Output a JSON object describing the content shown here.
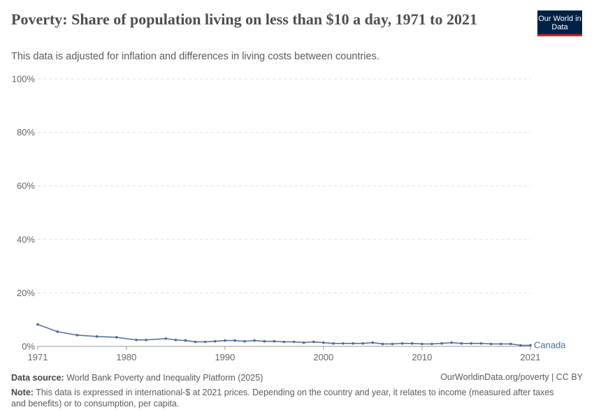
{
  "title": "Poverty: Share of population living on less than $10 a day, 1971 to 2021",
  "subtitle": "This data is adjusted for inflation and differences in living costs between countries.",
  "logo": "Our World in Data",
  "footer": {
    "source_label": "Data source:",
    "source": "World Bank Poverty and Inequality Platform (2025)",
    "credit": "OurWorldinData.org/poverty | CC BY",
    "note_label": "Note:",
    "note": "This data is expressed in international-$ at 2021 prices. Depending on the country and year, it relates to income (measured after taxes and benefits) or to consumption, per capita."
  },
  "chart_data": {
    "type": "line",
    "title": "Poverty: Share of population living on less than $10 a day, 1971 to 2021",
    "xlim": [
      1971,
      2021
    ],
    "ylim": [
      0,
      100
    ],
    "x_ticks": [
      "1971",
      "1980",
      "1990",
      "2000",
      "2010",
      "2021"
    ],
    "y_ticks": [
      "0%",
      "20%",
      "40%",
      "60%",
      "80%",
      "100%"
    ],
    "grid": "horizontal dashed",
    "series": [
      {
        "name": "Canada",
        "color": "#4c6a9c",
        "x": [
          1971,
          1973,
          1975,
          1977,
          1979,
          1981,
          1982,
          1984,
          1985,
          1986,
          1987,
          1988,
          1989,
          1990,
          1991,
          1992,
          1993,
          1994,
          1995,
          1996,
          1997,
          1998,
          1999,
          2000,
          2001,
          2002,
          2003,
          2004,
          2005,
          2006,
          2007,
          2008,
          2009,
          2010,
          2011,
          2012,
          2013,
          2014,
          2015,
          2016,
          2017,
          2018,
          2019,
          2020,
          2021
        ],
        "y": [
          8.2,
          5.5,
          4.2,
          3.7,
          3.4,
          2.4,
          2.4,
          2.9,
          2.4,
          2.2,
          1.7,
          1.7,
          1.9,
          2.2,
          2.2,
          1.9,
          2.2,
          1.9,
          1.9,
          1.7,
          1.7,
          1.4,
          1.7,
          1.4,
          1.1,
          1.1,
          1.1,
          1.1,
          1.4,
          0.9,
          0.9,
          1.1,
          1.1,
          0.9,
          0.9,
          1.1,
          1.4,
          1.1,
          1.1,
          1.1,
          0.9,
          0.9,
          0.9,
          0.4,
          0.4
        ]
      }
    ]
  }
}
